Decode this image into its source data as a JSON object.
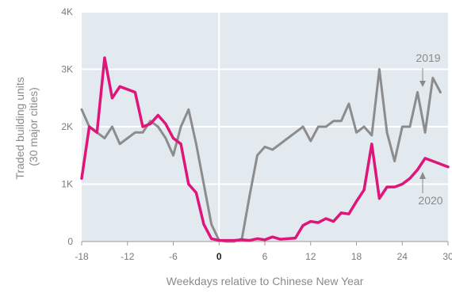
{
  "chart_data": {
    "type": "line",
    "xlabel": "Weekdays relative to Chinese New Year",
    "ylabel_lines": [
      "Traded building units",
      "(30 major cities)"
    ],
    "xlim": [
      -18,
      30
    ],
    "ylim": [
      0,
      4000
    ],
    "x_ticks": [
      -18,
      -12,
      -6,
      0,
      6,
      12,
      18,
      24,
      30
    ],
    "x_tick_labels": [
      "-18",
      "-12",
      "-6",
      "0",
      "6",
      "12",
      "18",
      "24",
      "30"
    ],
    "y_ticks": [
      0,
      1000,
      2000,
      3000,
      4000
    ],
    "y_tick_labels": [
      "0",
      "1K",
      "2K",
      "3K",
      "4K"
    ],
    "grid": "horizontal",
    "background": "#e2eaf0",
    "series": [
      {
        "name": "2019",
        "color": "#8c8c8c",
        "points": [
          [
            -18,
            2300
          ],
          [
            -17,
            2000
          ],
          [
            -16,
            1900
          ],
          [
            -15,
            1800
          ],
          [
            -14,
            2000
          ],
          [
            -13,
            1700
          ],
          [
            -12,
            1800
          ],
          [
            -11,
            1900
          ],
          [
            -10,
            1900
          ],
          [
            -9,
            2100
          ],
          [
            -8,
            2000
          ],
          [
            -7,
            1800
          ],
          [
            -6,
            1500
          ],
          [
            -5,
            2000
          ],
          [
            -4,
            2300
          ],
          [
            -3,
            1700
          ],
          [
            -2,
            1000
          ],
          [
            -1,
            300
          ],
          [
            0,
            20
          ],
          [
            1,
            0
          ],
          [
            2,
            0
          ],
          [
            3,
            50
          ],
          [
            4,
            800
          ],
          [
            5,
            1500
          ],
          [
            6,
            1650
          ],
          [
            7,
            1600
          ],
          [
            8,
            1700
          ],
          [
            9,
            1800
          ],
          [
            10,
            1900
          ],
          [
            11,
            2000
          ],
          [
            12,
            1750
          ],
          [
            13,
            2000
          ],
          [
            14,
            2000
          ],
          [
            15,
            2100
          ],
          [
            16,
            2100
          ],
          [
            17,
            2400
          ],
          [
            18,
            1900
          ],
          [
            19,
            2000
          ],
          [
            20,
            1850
          ],
          [
            21,
            3000
          ],
          [
            22,
            1900
          ],
          [
            23,
            1400
          ],
          [
            24,
            2000
          ],
          [
            25,
            2000
          ],
          [
            26,
            2600
          ],
          [
            27,
            1900
          ],
          [
            28,
            2850
          ],
          [
            29,
            2600
          ]
        ]
      },
      {
        "name": "2020",
        "color": "#e0157a",
        "points": [
          [
            -18,
            1100
          ],
          [
            -17,
            2000
          ],
          [
            -16,
            1900
          ],
          [
            -15,
            3200
          ],
          [
            -14,
            2500
          ],
          [
            -13,
            2700
          ],
          [
            -12,
            2650
          ],
          [
            -11,
            2600
          ],
          [
            -10,
            2000
          ],
          [
            -9,
            2050
          ],
          [
            -8,
            2200
          ],
          [
            -7,
            2050
          ],
          [
            -6,
            1800
          ],
          [
            -5,
            1700
          ],
          [
            -4,
            1000
          ],
          [
            -3,
            850
          ],
          [
            -2,
            300
          ],
          [
            -1,
            50
          ],
          [
            0,
            20
          ],
          [
            1,
            20
          ],
          [
            2,
            20
          ],
          [
            3,
            30
          ],
          [
            4,
            20
          ],
          [
            5,
            50
          ],
          [
            6,
            30
          ],
          [
            7,
            80
          ],
          [
            8,
            40
          ],
          [
            9,
            50
          ],
          [
            10,
            60
          ],
          [
            11,
            280
          ],
          [
            12,
            350
          ],
          [
            13,
            330
          ],
          [
            14,
            400
          ],
          [
            15,
            350
          ],
          [
            16,
            500
          ],
          [
            17,
            480
          ],
          [
            18,
            700
          ],
          [
            19,
            900
          ],
          [
            20,
            1700
          ],
          [
            21,
            750
          ],
          [
            22,
            950
          ],
          [
            23,
            950
          ],
          [
            24,
            1000
          ],
          [
            25,
            1100
          ],
          [
            26,
            1250
          ],
          [
            27,
            1450
          ],
          [
            28,
            1400
          ],
          [
            29,
            1350
          ],
          [
            30,
            1300
          ]
        ]
      }
    ],
    "annotations": [
      {
        "text": "2019",
        "series": "2019"
      },
      {
        "text": "2020",
        "series": "2020"
      }
    ]
  }
}
